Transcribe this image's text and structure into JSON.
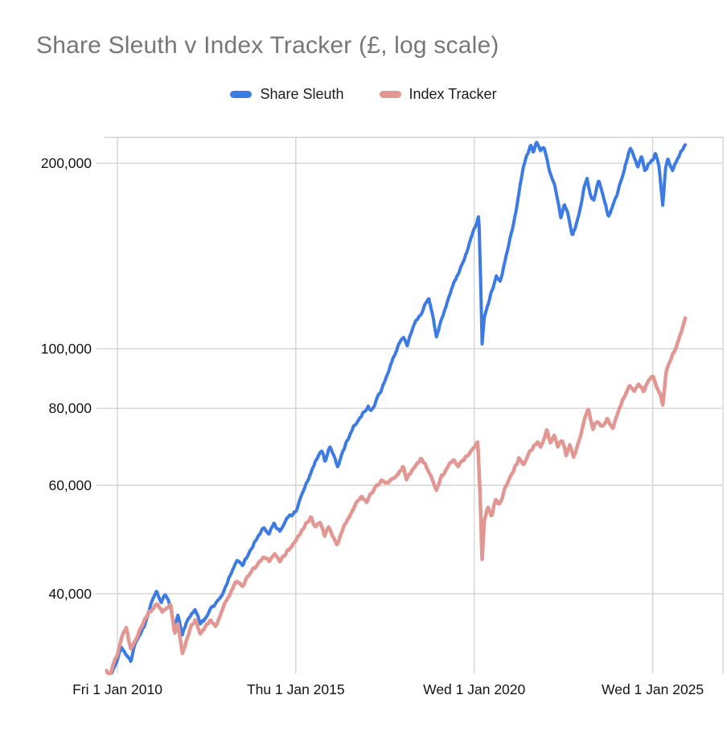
{
  "title": "Share Sleuth v Index Tracker (£, log scale)",
  "legend": [
    {
      "label": "Share Sleuth",
      "color": "#3d7be4"
    },
    {
      "label": "Index Tracker",
      "color": "#e39793"
    }
  ],
  "colors": {
    "title_text": "#777777",
    "axis_text": "#141414",
    "gridline": "#d4d4d4",
    "background": "#ffffff",
    "share_sleuth_line": "#3d7be4",
    "index_tracker_line": "#e39793"
  },
  "chart_data": {
    "type": "line",
    "title": "Share Sleuth v Index Tracker (£, log scale)",
    "xlabel": "",
    "ylabel": "",
    "y_scale": "log",
    "grid": true,
    "legend_position": "top-center",
    "ylim": [
      29700,
      221000
    ],
    "xlim": [
      2009.64,
      2026.97
    ],
    "y_ticks": [
      {
        "value": 40000,
        "label": "40,000"
      },
      {
        "value": 60000,
        "label": "60,000"
      },
      {
        "value": 80000,
        "label": "80,000"
      },
      {
        "value": 100000,
        "label": "100,000"
      },
      {
        "value": 200000,
        "label": "200,000"
      }
    ],
    "x_ticks": [
      {
        "t": 2010.0,
        "label": "Fri 1 Jan 2010"
      },
      {
        "t": 2015.0,
        "label": "Thu 1 Jan 2015"
      },
      {
        "t": 2020.0,
        "label": "Wed 1 Jan 2020"
      },
      {
        "t": 2025.0,
        "label": "Wed 1 Jan 2025"
      }
    ],
    "series": [
      {
        "name": "Share Sleuth",
        "color": "#3d7be4",
        "width": 4,
        "seed": 7,
        "points": [
          [
            2009.7,
            30000
          ],
          [
            2009.78,
            29000
          ],
          [
            2009.88,
            30200
          ],
          [
            2010.0,
            31200
          ],
          [
            2010.12,
            32800
          ],
          [
            2010.25,
            31800
          ],
          [
            2010.38,
            31000
          ],
          [
            2010.5,
            33000
          ],
          [
            2010.62,
            34200
          ],
          [
            2010.75,
            35200
          ],
          [
            2010.88,
            37200
          ],
          [
            2011.0,
            39200
          ],
          [
            2011.1,
            40600
          ],
          [
            2011.22,
            38800
          ],
          [
            2011.35,
            39800
          ],
          [
            2011.48,
            38200
          ],
          [
            2011.6,
            35000
          ],
          [
            2011.7,
            36800
          ],
          [
            2011.82,
            34200
          ],
          [
            2011.92,
            35600
          ],
          [
            2012.05,
            36800
          ],
          [
            2012.18,
            37600
          ],
          [
            2012.32,
            35800
          ],
          [
            2012.45,
            36400
          ],
          [
            2012.6,
            37800
          ],
          [
            2012.75,
            38600
          ],
          [
            2012.9,
            39600
          ],
          [
            2013.05,
            41200
          ],
          [
            2013.2,
            43200
          ],
          [
            2013.35,
            45400
          ],
          [
            2013.5,
            44400
          ],
          [
            2013.65,
            46200
          ],
          [
            2013.8,
            47800
          ],
          [
            2013.95,
            49400
          ],
          [
            2014.1,
            51200
          ],
          [
            2014.25,
            50200
          ],
          [
            2014.4,
            52000
          ],
          [
            2014.55,
            50600
          ],
          [
            2014.7,
            52400
          ],
          [
            2014.85,
            53400
          ],
          [
            2015.0,
            54400
          ],
          [
            2015.15,
            57200
          ],
          [
            2015.3,
            60200
          ],
          [
            2015.45,
            63200
          ],
          [
            2015.6,
            66600
          ],
          [
            2015.72,
            68600
          ],
          [
            2015.82,
            65600
          ],
          [
            2015.95,
            69600
          ],
          [
            2016.08,
            66600
          ],
          [
            2016.18,
            64100
          ],
          [
            2016.3,
            67600
          ],
          [
            2016.45,
            71100
          ],
          [
            2016.6,
            74100
          ],
          [
            2016.75,
            76600
          ],
          [
            2016.9,
            78600
          ],
          [
            2017.02,
            80600
          ],
          [
            2017.12,
            79100
          ],
          [
            2017.28,
            83100
          ],
          [
            2017.45,
            87600
          ],
          [
            2017.62,
            92600
          ],
          [
            2017.78,
            97600
          ],
          [
            2017.92,
            102600
          ],
          [
            2018.02,
            104600
          ],
          [
            2018.12,
            101100
          ],
          [
            2018.28,
            108600
          ],
          [
            2018.42,
            112100
          ],
          [
            2018.55,
            114600
          ],
          [
            2018.72,
            120600
          ],
          [
            2018.84,
            112600
          ],
          [
            2018.94,
            104100
          ],
          [
            2019.08,
            111600
          ],
          [
            2019.25,
            119600
          ],
          [
            2019.42,
            127100
          ],
          [
            2019.58,
            133600
          ],
          [
            2019.75,
            141100
          ],
          [
            2019.92,
            152100
          ],
          [
            2020.05,
            158600
          ],
          [
            2020.13,
            163100
          ],
          [
            2020.18,
            128100
          ],
          [
            2020.22,
            101600
          ],
          [
            2020.28,
            112100
          ],
          [
            2020.38,
            117600
          ],
          [
            2020.5,
            124600
          ],
          [
            2020.62,
            131600
          ],
          [
            2020.72,
            128600
          ],
          [
            2020.85,
            137600
          ],
          [
            2020.98,
            149100
          ],
          [
            2021.08,
            157100
          ],
          [
            2021.18,
            168100
          ],
          [
            2021.28,
            182100
          ],
          [
            2021.38,
            198100
          ],
          [
            2021.48,
            207100
          ],
          [
            2021.58,
            215100
          ],
          [
            2021.66,
            209100
          ],
          [
            2021.75,
            217100
          ],
          [
            2021.85,
            210100
          ],
          [
            2021.95,
            214100
          ],
          [
            2022.02,
            206100
          ],
          [
            2022.12,
            193100
          ],
          [
            2022.25,
            185100
          ],
          [
            2022.32,
            176100
          ],
          [
            2022.43,
            163600
          ],
          [
            2022.52,
            171600
          ],
          [
            2022.62,
            166600
          ],
          [
            2022.75,
            152600
          ],
          [
            2022.88,
            160600
          ],
          [
            2023.0,
            171600
          ],
          [
            2023.08,
            182600
          ],
          [
            2023.16,
            188600
          ],
          [
            2023.25,
            177600
          ],
          [
            2023.35,
            174600
          ],
          [
            2023.49,
            188100
          ],
          [
            2023.6,
            178600
          ],
          [
            2023.76,
            163600
          ],
          [
            2023.88,
            170600
          ],
          [
            2024.0,
            178600
          ],
          [
            2024.12,
            188600
          ],
          [
            2024.25,
            200600
          ],
          [
            2024.38,
            212100
          ],
          [
            2024.48,
            205100
          ],
          [
            2024.58,
            196600
          ],
          [
            2024.68,
            206600
          ],
          [
            2024.78,
            194600
          ],
          [
            2024.88,
            199600
          ],
          [
            2025.0,
            201600
          ],
          [
            2025.08,
            207600
          ],
          [
            2025.18,
            197600
          ],
          [
            2025.28,
            169600
          ],
          [
            2025.36,
            196600
          ],
          [
            2025.42,
            204100
          ],
          [
            2025.5,
            198600
          ],
          [
            2025.56,
            194600
          ],
          [
            2025.66,
            201600
          ],
          [
            2025.76,
            206600
          ],
          [
            2025.84,
            210600
          ],
          [
            2025.92,
            214600
          ]
        ]
      },
      {
        "name": "Index Tracker",
        "color": "#e39793",
        "width": 4.5,
        "seed": 13,
        "points": [
          [
            2009.7,
            30000
          ],
          [
            2009.78,
            29200
          ],
          [
            2009.88,
            30800
          ],
          [
            2010.0,
            32000
          ],
          [
            2010.12,
            34200
          ],
          [
            2010.25,
            35300
          ],
          [
            2010.38,
            32300
          ],
          [
            2010.5,
            33500
          ],
          [
            2010.62,
            34800
          ],
          [
            2010.75,
            36200
          ],
          [
            2010.88,
            37300
          ],
          [
            2011.0,
            37800
          ],
          [
            2011.12,
            38600
          ],
          [
            2011.25,
            37200
          ],
          [
            2011.38,
            37900
          ],
          [
            2011.5,
            38300
          ],
          [
            2011.6,
            34500
          ],
          [
            2011.7,
            35800
          ],
          [
            2011.82,
            31900
          ],
          [
            2011.92,
            33500
          ],
          [
            2012.05,
            35200
          ],
          [
            2012.18,
            36300
          ],
          [
            2012.32,
            34300
          ],
          [
            2012.45,
            35300
          ],
          [
            2012.6,
            36300
          ],
          [
            2012.75,
            35400
          ],
          [
            2012.9,
            37200
          ],
          [
            2013.05,
            38900
          ],
          [
            2013.2,
            40600
          ],
          [
            2013.35,
            42100
          ],
          [
            2013.5,
            41100
          ],
          [
            2013.65,
            42600
          ],
          [
            2013.8,
            43600
          ],
          [
            2013.95,
            44700
          ],
          [
            2014.1,
            46100
          ],
          [
            2014.25,
            45100
          ],
          [
            2014.4,
            46400
          ],
          [
            2014.55,
            45300
          ],
          [
            2014.7,
            46600
          ],
          [
            2014.85,
            47600
          ],
          [
            2015.0,
            48900
          ],
          [
            2015.15,
            50300
          ],
          [
            2015.3,
            52100
          ],
          [
            2015.42,
            53300
          ],
          [
            2015.55,
            51300
          ],
          [
            2015.68,
            52600
          ],
          [
            2015.8,
            49800
          ],
          [
            2015.92,
            51300
          ],
          [
            2016.05,
            49300
          ],
          [
            2016.15,
            47800
          ],
          [
            2016.28,
            50300
          ],
          [
            2016.42,
            52300
          ],
          [
            2016.58,
            54300
          ],
          [
            2016.72,
            56300
          ],
          [
            2016.85,
            57400
          ],
          [
            2016.98,
            56300
          ],
          [
            2017.1,
            58300
          ],
          [
            2017.25,
            59800
          ],
          [
            2017.4,
            61000
          ],
          [
            2017.55,
            60200
          ],
          [
            2017.7,
            61400
          ],
          [
            2017.85,
            62400
          ],
          [
            2018.0,
            64600
          ],
          [
            2018.1,
            61400
          ],
          [
            2018.25,
            63400
          ],
          [
            2018.4,
            65100
          ],
          [
            2018.52,
            66400
          ],
          [
            2018.65,
            64400
          ],
          [
            2018.8,
            61900
          ],
          [
            2018.94,
            58900
          ],
          [
            2019.08,
            62100
          ],
          [
            2019.25,
            64100
          ],
          [
            2019.4,
            65700
          ],
          [
            2019.55,
            64400
          ],
          [
            2019.7,
            66100
          ],
          [
            2019.85,
            67900
          ],
          [
            2020.0,
            69400
          ],
          [
            2020.1,
            70400
          ],
          [
            2020.16,
            58400
          ],
          [
            2020.22,
            45400
          ],
          [
            2020.28,
            52400
          ],
          [
            2020.38,
            55400
          ],
          [
            2020.48,
            53700
          ],
          [
            2020.6,
            56900
          ],
          [
            2020.72,
            55900
          ],
          [
            2020.85,
            58900
          ],
          [
            2020.98,
            61400
          ],
          [
            2021.1,
            63400
          ],
          [
            2021.25,
            66200
          ],
          [
            2021.38,
            64900
          ],
          [
            2021.52,
            67400
          ],
          [
            2021.65,
            69400
          ],
          [
            2021.78,
            70900
          ],
          [
            2021.86,
            69100
          ],
          [
            2021.95,
            71400
          ],
          [
            2022.04,
            73900
          ],
          [
            2022.14,
            70400
          ],
          [
            2022.24,
            72700
          ],
          [
            2022.34,
            68900
          ],
          [
            2022.46,
            71400
          ],
          [
            2022.58,
            67400
          ],
          [
            2022.68,
            70200
          ],
          [
            2022.78,
            66400
          ],
          [
            2022.88,
            68900
          ],
          [
            2023.0,
            73400
          ],
          [
            2023.1,
            77400
          ],
          [
            2023.2,
            79900
          ],
          [
            2023.32,
            73900
          ],
          [
            2023.45,
            76400
          ],
          [
            2023.58,
            74400
          ],
          [
            2023.72,
            76900
          ],
          [
            2023.88,
            73900
          ],
          [
            2024.02,
            78900
          ],
          [
            2024.18,
            82900
          ],
          [
            2024.35,
            87400
          ],
          [
            2024.48,
            85400
          ],
          [
            2024.62,
            87700
          ],
          [
            2024.75,
            84900
          ],
          [
            2024.88,
            88400
          ],
          [
            2025.0,
            90400
          ],
          [
            2025.12,
            86900
          ],
          [
            2025.22,
            84400
          ],
          [
            2025.28,
            81400
          ],
          [
            2025.38,
            91900
          ],
          [
            2025.5,
            96400
          ],
          [
            2025.62,
            99900
          ],
          [
            2025.72,
            103400
          ],
          [
            2025.82,
            107400
          ],
          [
            2025.92,
            112400
          ]
        ]
      }
    ]
  }
}
